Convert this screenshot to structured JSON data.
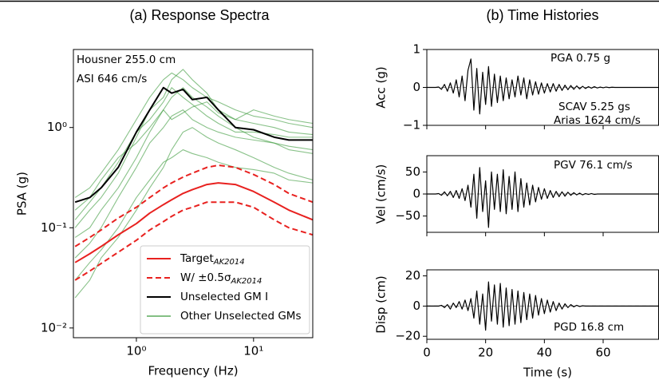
{
  "chart_data": [
    {
      "type": "line",
      "title": "(a) Response Spectra",
      "xlabel": "Frequency (Hz)",
      "ylabel": "PSA (g)",
      "xscale": "log",
      "yscale": "log",
      "x": [
        0.3,
        0.4,
        0.5,
        0.7,
        1,
        1.3,
        1.7,
        2,
        2.5,
        3,
        4,
        5,
        7,
        10,
        15,
        20,
        32
      ],
      "xlim": [
        0.29,
        32
      ],
      "ylim": [
        0.008,
        6
      ],
      "xticks": [
        {
          "value": 1,
          "label": "10⁰"
        },
        {
          "value": 10,
          "label": "10¹"
        }
      ],
      "yticks": [
        {
          "value": 0.01,
          "label": "10⁻²"
        },
        {
          "value": 0.1,
          "label": "10⁻¹"
        },
        {
          "value": 1,
          "label": "10⁰"
        }
      ],
      "annotations": [
        "Housner  255.0  cm",
        "ASI 646 cm/s"
      ],
      "series": [
        {
          "name": "Target",
          "name_sub": "AK2014",
          "color": "#e8211f",
          "dash": false,
          "values": [
            0.045,
            0.055,
            0.065,
            0.085,
            0.11,
            0.14,
            0.17,
            0.19,
            0.22,
            0.24,
            0.27,
            0.28,
            0.27,
            0.23,
            0.18,
            0.15,
            0.12
          ]
        },
        {
          "name": "W/ ±0.5σ",
          "name_sub": "AK2014",
          "color": "#e8211f",
          "dash": true,
          "values": [
            0.065,
            0.08,
            0.095,
            0.125,
            0.16,
            0.2,
            0.25,
            0.28,
            0.32,
            0.35,
            0.4,
            0.42,
            0.4,
            0.34,
            0.27,
            0.22,
            0.18
          ]
        },
        {
          "color": "#e8211f",
          "dash": true,
          "values": [
            0.03,
            0.037,
            0.044,
            0.057,
            0.075,
            0.095,
            0.115,
            0.13,
            0.15,
            0.16,
            0.18,
            0.18,
            0.18,
            0.16,
            0.12,
            0.1,
            0.085
          ]
        },
        {
          "name": "Unselected GM I",
          "color": "#000000",
          "dash": false,
          "values": [
            0.18,
            0.2,
            0.25,
            0.4,
            0.9,
            1.5,
            2.5,
            2.2,
            2.4,
            1.9,
            2.0,
            1.5,
            1.0,
            0.95,
            0.8,
            0.75,
            0.75
          ]
        },
        {
          "name": "Other Unselected GMs",
          "color": "#3a9a3a",
          "dash": false,
          "values": [
            0.2,
            0.25,
            0.35,
            0.6,
            1.2,
            2,
            3,
            3.5,
            3,
            2.5,
            2,
            1.8,
            1.5,
            1.3,
            1.2,
            1.1,
            1.0
          ]
        },
        {
          "color": "#3a9a3a",
          "dash": false,
          "values": [
            0.1,
            0.15,
            0.2,
            0.35,
            0.8,
            1.5,
            2,
            3,
            3.8,
            3,
            2.2,
            1.5,
            1.2,
            1.1,
            1.0,
            0.9,
            0.85
          ]
        },
        {
          "color": "#3a9a3a",
          "dash": false,
          "values": [
            0.05,
            0.07,
            0.1,
            0.2,
            0.4,
            0.7,
            1.0,
            1.3,
            1.5,
            1.2,
            1.0,
            0.9,
            0.8,
            0.75,
            0.7,
            0.65,
            0.6
          ]
        },
        {
          "color": "#3a9a3a",
          "dash": false,
          "values": [
            0.02,
            0.03,
            0.05,
            0.08,
            0.15,
            0.25,
            0.4,
            0.6,
            0.9,
            1.0,
            0.8,
            0.7,
            0.6,
            0.5,
            0.4,
            0.35,
            0.3
          ]
        },
        {
          "color": "#3a9a3a",
          "dash": false,
          "values": [
            0.15,
            0.2,
            0.3,
            0.5,
            0.7,
            1.0,
            1.5,
            1.2,
            1.4,
            1.6,
            1.8,
            1.4,
            1.2,
            1.5,
            1.3,
            1.2,
            1.1
          ]
        },
        {
          "color": "#3a9a3a",
          "dash": false,
          "values": [
            0.08,
            0.1,
            0.15,
            0.25,
            0.5,
            0.9,
            1.5,
            2.0,
            2.5,
            2.0,
            1.6,
            1.3,
            1.0,
            0.8,
            0.7,
            0.6,
            0.55
          ]
        },
        {
          "color": "#3a9a3a",
          "dash": false,
          "values": [
            0.03,
            0.045,
            0.06,
            0.1,
            0.2,
            0.3,
            0.45,
            0.5,
            0.6,
            0.55,
            0.5,
            0.45,
            0.4,
            0.38,
            0.35,
            0.3,
            0.28
          ]
        },
        {
          "color": "#3a9a3a",
          "dash": false,
          "values": [
            0.12,
            0.18,
            0.25,
            0.45,
            0.9,
            1.2,
            1.8,
            2.5,
            2.0,
            1.7,
            1.3,
            1.1,
            0.9,
            0.9,
            0.85,
            0.8,
            0.8
          ]
        }
      ]
    },
    {
      "type": "line",
      "title": "(b) Time Histories",
      "ylabel": "Acc (g)",
      "xtick_labels": false,
      "x": [
        0,
        1,
        2,
        3,
        4,
        5,
        6,
        7,
        8,
        9,
        10,
        11,
        12,
        13,
        14,
        15,
        16,
        17,
        18,
        19,
        20,
        21,
        22,
        23,
        24,
        25,
        26,
        27,
        28,
        29,
        30,
        31,
        32,
        33,
        34,
        35,
        36,
        37,
        38,
        39,
        40,
        41,
        42,
        43,
        44,
        45,
        46,
        47,
        48,
        49,
        50,
        51,
        52,
        53,
        54,
        55,
        56,
        57,
        58,
        59,
        60,
        61,
        62,
        63,
        64,
        65,
        66,
        67,
        68,
        69,
        70,
        71,
        72,
        73,
        74,
        75,
        76,
        77,
        78,
        79
      ],
      "xlim": [
        0,
        79
      ],
      "ylim": [
        -1,
        1
      ],
      "xticks": [
        0,
        20,
        40,
        60
      ],
      "yticks": [
        {
          "value": -1,
          "label": "−1"
        },
        0,
        1
      ],
      "annotations": [
        "PGA  0.75  g",
        "SCAV  5.25  gs",
        "Arias  1624  cm/s"
      ],
      "series": [
        {
          "color": "#000000",
          "values": [
            0,
            0,
            0,
            0,
            0.01,
            -0.05,
            0.08,
            -0.1,
            0.12,
            -0.15,
            0.2,
            -0.25,
            0.3,
            -0.35,
            0.45,
            0.75,
            -0.6,
            0.5,
            -0.7,
            0.4,
            -0.45,
            0.55,
            -0.5,
            0.35,
            -0.4,
            0.3,
            -0.35,
            0.25,
            -0.3,
            0.2,
            -0.25,
            0.3,
            -0.2,
            0.25,
            -0.3,
            0.2,
            -0.2,
            0.15,
            -0.18,
            0.12,
            -0.15,
            0.1,
            -0.12,
            0.1,
            -0.1,
            0.08,
            -0.08,
            0.06,
            -0.06,
            0.05,
            -0.05,
            0.04,
            -0.04,
            0.03,
            -0.03,
            0.02,
            -0.02,
            0.02,
            -0.015,
            0.01,
            -0.01,
            0.01,
            -0.005,
            0.005,
            0,
            0,
            0,
            0,
            0,
            0,
            0,
            0,
            0,
            0,
            0,
            0,
            0,
            0,
            0,
            0
          ]
        }
      ]
    },
    {
      "type": "line",
      "ylabel": "Vel (cm/s)",
      "xtick_labels": false,
      "x": [
        0,
        1,
        2,
        3,
        4,
        5,
        6,
        7,
        8,
        9,
        10,
        11,
        12,
        13,
        14,
        15,
        16,
        17,
        18,
        19,
        20,
        21,
        22,
        23,
        24,
        25,
        26,
        27,
        28,
        29,
        30,
        31,
        32,
        33,
        34,
        35,
        36,
        37,
        38,
        39,
        40,
        41,
        42,
        43,
        44,
        45,
        46,
        47,
        48,
        49,
        50,
        51,
        52,
        53,
        54,
        55,
        56,
        57,
        58,
        59,
        60,
        61,
        62,
        63,
        64,
        65,
        66,
        67,
        68,
        69,
        70,
        71,
        72,
        73,
        74,
        75,
        76,
        77,
        78,
        79
      ],
      "xlim": [
        0,
        79
      ],
      "ylim": [
        -87,
        87
      ],
      "xticks": [
        0,
        20,
        40,
        60
      ],
      "yticks": [
        {
          "value": -50,
          "label": "−50"
        },
        0,
        50
      ],
      "annotations": [
        "PGV  76.1  cm/s"
      ],
      "series": [
        {
          "color": "#000000",
          "values": [
            0,
            0,
            0,
            0,
            1,
            -3,
            5,
            -4,
            6,
            -8,
            8,
            -10,
            12,
            -15,
            20,
            -30,
            45,
            -55,
            60,
            -40,
            30,
            -76,
            50,
            -35,
            45,
            -40,
            55,
            -45,
            40,
            -35,
            50,
            -40,
            35,
            -30,
            25,
            -25,
            20,
            -18,
            15,
            -12,
            12,
            -10,
            8,
            -8,
            6,
            -6,
            5,
            -5,
            4,
            -3,
            3,
            -2,
            2,
            -2,
            1,
            -1,
            1,
            -1,
            0,
            0,
            0,
            0,
            0,
            0,
            0,
            0,
            0,
            0,
            0,
            0,
            0,
            0,
            0,
            0,
            0,
            0,
            0,
            0,
            0,
            0
          ]
        }
      ]
    },
    {
      "type": "line",
      "ylabel": "Disp (cm)",
      "xlabel": "Time (s)",
      "xtick_labels": true,
      "x": [
        0,
        1,
        2,
        3,
        4,
        5,
        6,
        7,
        8,
        9,
        10,
        11,
        12,
        13,
        14,
        15,
        16,
        17,
        18,
        19,
        20,
        21,
        22,
        23,
        24,
        25,
        26,
        27,
        28,
        29,
        30,
        31,
        32,
        33,
        34,
        35,
        36,
        37,
        38,
        39,
        40,
        41,
        42,
        43,
        44,
        45,
        46,
        47,
        48,
        49,
        50,
        51,
        52,
        53,
        54,
        55,
        56,
        57,
        58,
        59,
        60,
        61,
        62,
        63,
        64,
        65,
        66,
        67,
        68,
        69,
        70,
        71,
        72,
        73,
        74,
        75,
        76,
        77,
        78,
        79
      ],
      "xlim": [
        0,
        79
      ],
      "ylim": [
        -22,
        24
      ],
      "xticks": [
        0,
        20,
        40,
        60
      ],
      "yticks": [
        {
          "value": -20,
          "label": "−20"
        },
        0,
        20
      ],
      "annotations": [
        "PGD  16.8  cm"
      ],
      "series": [
        {
          "color": "#000000",
          "values": [
            0,
            0,
            0,
            0,
            0,
            0.5,
            -1,
            1,
            -2,
            2,
            -1,
            3,
            -2,
            4,
            -3,
            5,
            -8,
            10,
            -12,
            8,
            -16,
            16,
            -10,
            14,
            -12,
            15,
            -14,
            12,
            -13,
            11,
            -12,
            10,
            -11,
            9,
            -9,
            8,
            -8,
            7,
            -6,
            5,
            -5,
            4,
            -4,
            3,
            -3,
            2,
            -2,
            1.5,
            -1,
            1,
            -0.5,
            0.5,
            -0.3,
            0.2,
            0,
            0,
            0,
            0,
            0,
            0,
            0,
            0,
            0,
            0,
            0,
            0,
            0,
            0,
            0,
            0,
            0,
            0,
            0,
            0,
            0,
            0,
            0,
            0,
            0,
            0
          ]
        }
      ]
    }
  ]
}
